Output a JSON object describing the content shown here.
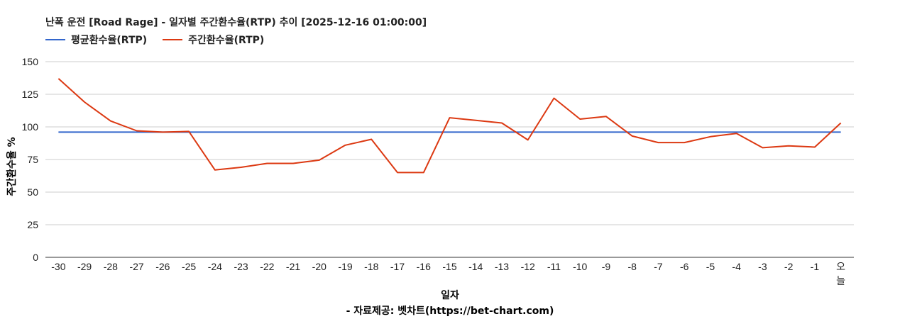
{
  "chart_data": {
    "type": "line",
    "title": "난폭 운전 [Road Rage] - 일자별 주간환수율(RTP) 추이 [2025-12-16 01:00:00]",
    "xlabel": "일자",
    "ylabel": "주간환수율 %",
    "source": "- 자료제공: 벳차트(https://bet-chart.com)",
    "categories": [
      "-30",
      "-29",
      "-28",
      "-27",
      "-26",
      "-25",
      "-24",
      "-23",
      "-22",
      "-21",
      "-20",
      "-19",
      "-18",
      "-17",
      "-16",
      "-15",
      "-14",
      "-13",
      "-12",
      "-11",
      "-10",
      "-9",
      "-8",
      "-7",
      "-6",
      "-5",
      "-4",
      "-3",
      "-2",
      "-1",
      "오늘"
    ],
    "ylim": [
      0,
      150
    ],
    "yticks": [
      0,
      25,
      50,
      75,
      100,
      125,
      150
    ],
    "grid": true,
    "legend_position": "top-left",
    "series": [
      {
        "name": "평균환수율(RTP)",
        "color": "#3366cc",
        "values": [
          96,
          96,
          96,
          96,
          96,
          96,
          96,
          96,
          96,
          96,
          96,
          96,
          96,
          96,
          96,
          96,
          96,
          96,
          96,
          96,
          96,
          96,
          96,
          96,
          96,
          96,
          96,
          96,
          96,
          96,
          96
        ]
      },
      {
        "name": "주간환수율(RTP)",
        "color": "#dc3912",
        "values": [
          137,
          119,
          104.5,
          97,
          96,
          96.5,
          67,
          69,
          72,
          72,
          74.5,
          86,
          90.5,
          65,
          65,
          107,
          105,
          103,
          90,
          122,
          106,
          108,
          93,
          88,
          88,
          92.5,
          95,
          84,
          85.5,
          84.5,
          103
        ]
      }
    ]
  }
}
